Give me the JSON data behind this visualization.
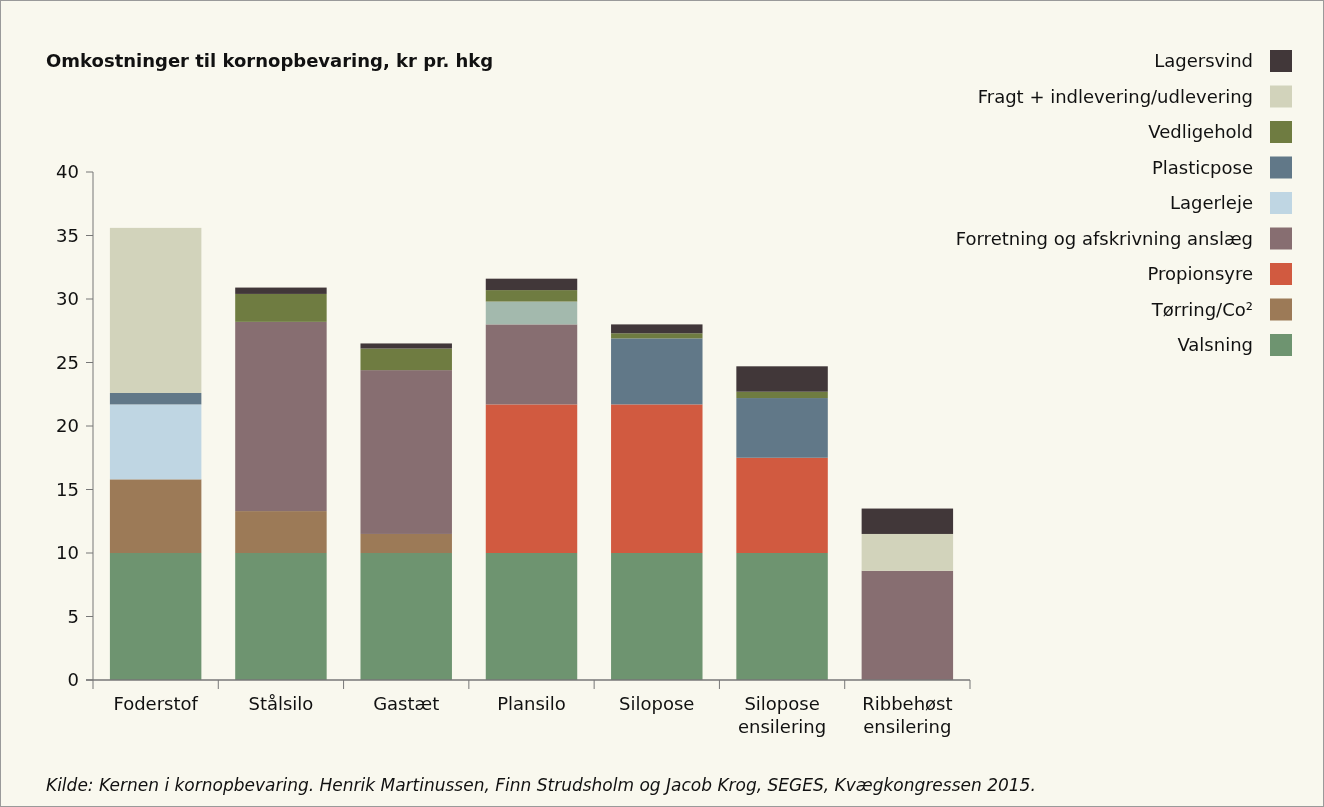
{
  "chart_data": {
    "type": "bar",
    "stacked": true,
    "title": "Omkostninger til kornopbevaring, kr pr. hkg",
    "categories": [
      "Foderstof",
      "Stålsilo",
      "Gastæt",
      "Plansilo",
      "Silopose",
      "Silopose ensilering",
      "Ribbehøst ensilering"
    ],
    "series": [
      {
        "name": "Valsning",
        "color": "#6e9470",
        "values": [
          10,
          10,
          10,
          10,
          10,
          10,
          0
        ]
      },
      {
        "name": "Tørring/Co²",
        "color": "#9c7a57",
        "values": [
          5.8,
          3.3,
          1.5,
          0,
          0,
          0,
          0
        ]
      },
      {
        "name": "Propionsyre",
        "color": "#d15a40",
        "values": [
          0,
          0,
          0,
          11.7,
          11.7,
          7.5,
          0
        ]
      },
      {
        "name": "Forretning og afskrivning anslæg",
        "color": "#876e71",
        "values": [
          0,
          14.9,
          12.9,
          6.3,
          0,
          0,
          8.6
        ]
      },
      {
        "name": "Lagerleje",
        "color": "#bfd6e3",
        "values": [
          5.9,
          0,
          0,
          0,
          0,
          0,
          0
        ]
      },
      {
        "name": "Plasticpose",
        "color": "#617888",
        "values": [
          0.9,
          0,
          0,
          0,
          5.2,
          4.7,
          0
        ]
      },
      {
        "color": "#a3b9ad",
        "values": [
          0,
          0,
          0,
          1.8,
          0,
          0,
          0
        ]
      },
      {
        "name": "Vedligehold",
        "color": "#6f7c41",
        "values": [
          0,
          2.2,
          1.7,
          0.9,
          0.4,
          0.5,
          0
        ]
      },
      {
        "name": "Fragt + indlevering/udlevering",
        "color": "#d2d3bb",
        "values": [
          13,
          0,
          0,
          0,
          0,
          0,
          2.9
        ]
      },
      {
        "name": "Lagersvind",
        "color": "#413739",
        "values": [
          0,
          0.5,
          0.4,
          0.9,
          0.7,
          2,
          2
        ]
      }
    ],
    "ylim": [
      0,
      40
    ],
    "yticks": [
      0,
      5,
      10,
      15,
      20,
      25,
      30,
      35,
      40
    ],
    "grid": false,
    "legend": "top right",
    "annotations": [
      "Kilde: Kernen i kornopbevaring. Henrik Martinussen, Finn Strudsholm og Jacob Krog, SEGES, Kvægkongressen 2015."
    ]
  }
}
